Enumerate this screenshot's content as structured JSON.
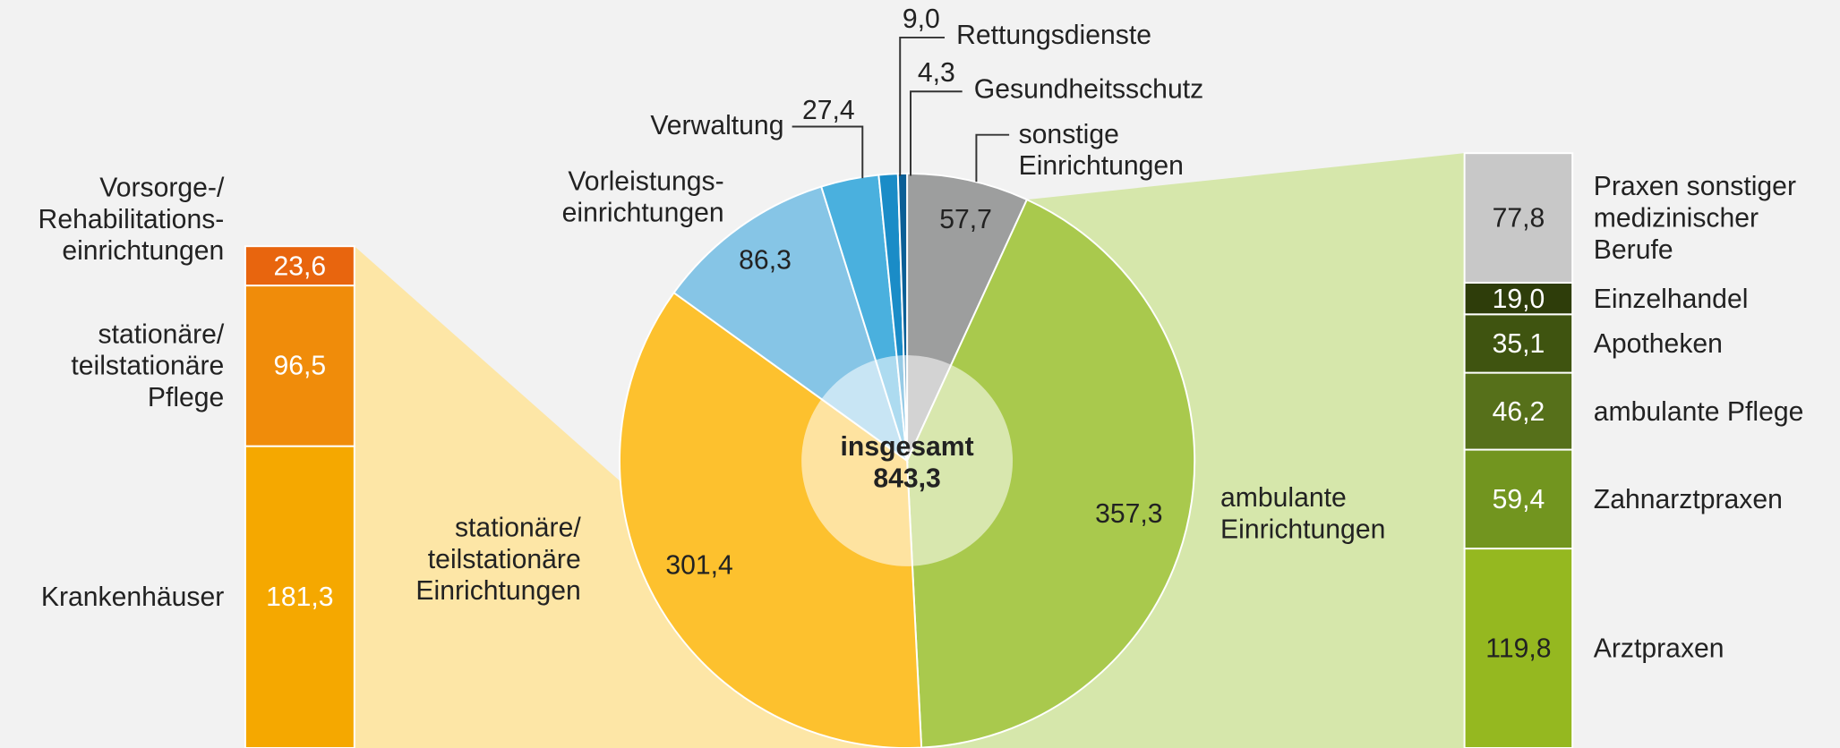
{
  "chart_data": [
    {
      "type": "donut",
      "center_label": "insgesamt",
      "total": {
        "value": 843.3,
        "label": "843,3"
      },
      "categories": [
        "sonstige\nEinrichtungen",
        "ambulante\nEinrichtungen",
        "stationäre/\nteilstationäre\nEinrichtungen",
        "Vorleistungs-\neinrichtungen",
        "Verwaltung",
        "Rettungsdienste",
        "Gesundheitsschutz"
      ],
      "values": [
        57.7,
        357.3,
        301.4,
        86.3,
        27.4,
        9.0,
        4.3
      ],
      "value_labels": [
        "57,7",
        "357,3",
        "301,4",
        "86,3",
        "27,4",
        "9,0",
        "4,3"
      ],
      "colors": [
        "#9d9e9e",
        "#a9c94d",
        "#fdc12e",
        "#86c5e6",
        "#4ab0de",
        "#1a8cc7",
        "#0b5f96"
      ]
    },
    {
      "type": "stacked_bar",
      "categories": [
        "Vorsorge-/\nRehabilitations-\neinrichtungen",
        "stationäre/\nteilstationäre\nPflege",
        "Krankenhäuser"
      ],
      "values": [
        23.6,
        96.5,
        181.3
      ],
      "value_labels": [
        "23,6",
        "96,5",
        "181,3"
      ],
      "colors": [
        "#e8650e",
        "#f08c0a",
        "#f5a800"
      ]
    },
    {
      "type": "stacked_bar",
      "categories": [
        "Praxen sonstiger\nmedizinischer\nBerufe",
        "Einzelhandel",
        "Apotheken",
        "ambulante Pflege",
        "Zahnarztpraxen",
        "Arztpraxen"
      ],
      "values": [
        77.8,
        19.0,
        35.1,
        46.2,
        59.4,
        119.8
      ],
      "value_labels": [
        "77,8",
        "19,0",
        "35,1",
        "46,2",
        "59,4",
        "119,8"
      ],
      "colors": [
        "#c8c8c8",
        "#2e3d0a",
        "#3f5410",
        "#56701a",
        "#72951f",
        "#95b820"
      ]
    }
  ]
}
